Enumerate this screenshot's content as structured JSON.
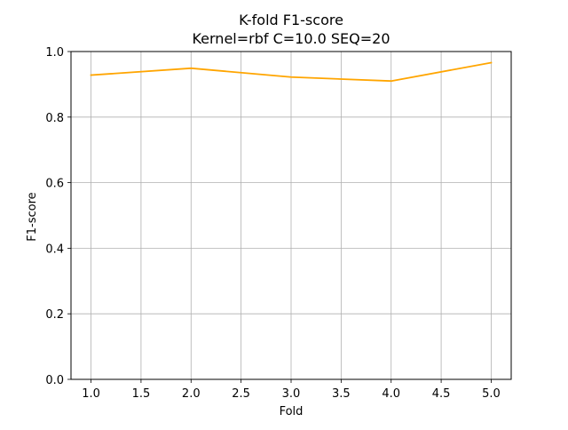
{
  "chart_data": {
    "type": "line",
    "title_lines": [
      "K-fold F1-score",
      "Kernel=rbf C=10.0 SEQ=20"
    ],
    "xlabel": "Fold",
    "ylabel": "F1-score",
    "x": [
      1,
      2,
      3,
      4,
      5
    ],
    "series": [
      {
        "color": "#ffa500",
        "values": [
          0.928,
          0.949,
          0.922,
          0.91,
          0.966
        ]
      }
    ],
    "xlim": [
      0.8,
      5.2
    ],
    "ylim": [
      0.0,
      1.0
    ],
    "xticks": [
      1.0,
      1.5,
      2.0,
      2.5,
      3.0,
      3.5,
      4.0,
      4.5,
      5.0
    ],
    "xtick_labels": [
      "1.0",
      "1.5",
      "2.0",
      "2.5",
      "3.0",
      "3.5",
      "4.0",
      "4.5",
      "5.0"
    ],
    "yticks": [
      0.0,
      0.2,
      0.4,
      0.6,
      0.8,
      1.0
    ],
    "ytick_labels": [
      "0.0",
      "0.2",
      "0.4",
      "0.6",
      "0.8",
      "1.0"
    ],
    "grid": true,
    "legend": "none"
  }
}
